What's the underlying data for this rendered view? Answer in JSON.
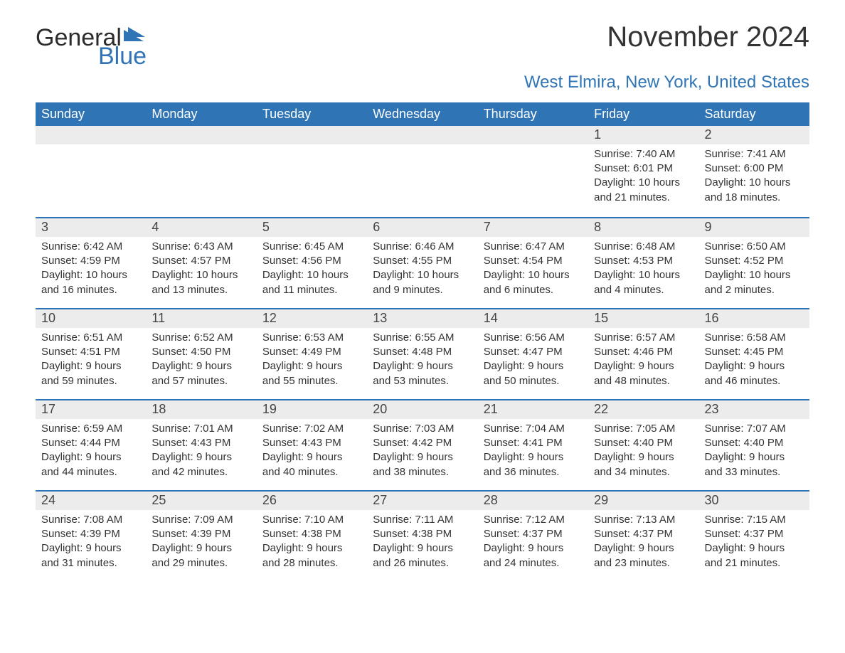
{
  "logo": {
    "word1": "General",
    "word2": "Blue",
    "flag_color": "#2f74b5"
  },
  "title": "November 2024",
  "subtitle": "West Elmira, New York, United States",
  "style": {
    "header_bg": "#2f74b5",
    "header_text": "#ffffff",
    "band_bg": "#ececec",
    "band_border": "#2f74b5",
    "body_bg": "#ffffff",
    "text_color": "#333333",
    "title_fontsize": 40,
    "subtitle_fontsize": 24,
    "dayname_fontsize": 18,
    "daynum_fontsize": 18,
    "body_fontsize": 15
  },
  "day_names": [
    "Sunday",
    "Monday",
    "Tuesday",
    "Wednesday",
    "Thursday",
    "Friday",
    "Saturday"
  ],
  "weeks": [
    [
      null,
      null,
      null,
      null,
      null,
      {
        "n": "1",
        "sunrise": "7:40 AM",
        "sunset": "6:01 PM",
        "daylight": "10 hours and 21 minutes."
      },
      {
        "n": "2",
        "sunrise": "7:41 AM",
        "sunset": "6:00 PM",
        "daylight": "10 hours and 18 minutes."
      }
    ],
    [
      {
        "n": "3",
        "sunrise": "6:42 AM",
        "sunset": "4:59 PM",
        "daylight": "10 hours and 16 minutes."
      },
      {
        "n": "4",
        "sunrise": "6:43 AM",
        "sunset": "4:57 PM",
        "daylight": "10 hours and 13 minutes."
      },
      {
        "n": "5",
        "sunrise": "6:45 AM",
        "sunset": "4:56 PM",
        "daylight": "10 hours and 11 minutes."
      },
      {
        "n": "6",
        "sunrise": "6:46 AM",
        "sunset": "4:55 PM",
        "daylight": "10 hours and 9 minutes."
      },
      {
        "n": "7",
        "sunrise": "6:47 AM",
        "sunset": "4:54 PM",
        "daylight": "10 hours and 6 minutes."
      },
      {
        "n": "8",
        "sunrise": "6:48 AM",
        "sunset": "4:53 PM",
        "daylight": "10 hours and 4 minutes."
      },
      {
        "n": "9",
        "sunrise": "6:50 AM",
        "sunset": "4:52 PM",
        "daylight": "10 hours and 2 minutes."
      }
    ],
    [
      {
        "n": "10",
        "sunrise": "6:51 AM",
        "sunset": "4:51 PM",
        "daylight": "9 hours and 59 minutes."
      },
      {
        "n": "11",
        "sunrise": "6:52 AM",
        "sunset": "4:50 PM",
        "daylight": "9 hours and 57 minutes."
      },
      {
        "n": "12",
        "sunrise": "6:53 AM",
        "sunset": "4:49 PM",
        "daylight": "9 hours and 55 minutes."
      },
      {
        "n": "13",
        "sunrise": "6:55 AM",
        "sunset": "4:48 PM",
        "daylight": "9 hours and 53 minutes."
      },
      {
        "n": "14",
        "sunrise": "6:56 AM",
        "sunset": "4:47 PM",
        "daylight": "9 hours and 50 minutes."
      },
      {
        "n": "15",
        "sunrise": "6:57 AM",
        "sunset": "4:46 PM",
        "daylight": "9 hours and 48 minutes."
      },
      {
        "n": "16",
        "sunrise": "6:58 AM",
        "sunset": "4:45 PM",
        "daylight": "9 hours and 46 minutes."
      }
    ],
    [
      {
        "n": "17",
        "sunrise": "6:59 AM",
        "sunset": "4:44 PM",
        "daylight": "9 hours and 44 minutes."
      },
      {
        "n": "18",
        "sunrise": "7:01 AM",
        "sunset": "4:43 PM",
        "daylight": "9 hours and 42 minutes."
      },
      {
        "n": "19",
        "sunrise": "7:02 AM",
        "sunset": "4:43 PM",
        "daylight": "9 hours and 40 minutes."
      },
      {
        "n": "20",
        "sunrise": "7:03 AM",
        "sunset": "4:42 PM",
        "daylight": "9 hours and 38 minutes."
      },
      {
        "n": "21",
        "sunrise": "7:04 AM",
        "sunset": "4:41 PM",
        "daylight": "9 hours and 36 minutes."
      },
      {
        "n": "22",
        "sunrise": "7:05 AM",
        "sunset": "4:40 PM",
        "daylight": "9 hours and 34 minutes."
      },
      {
        "n": "23",
        "sunrise": "7:07 AM",
        "sunset": "4:40 PM",
        "daylight": "9 hours and 33 minutes."
      }
    ],
    [
      {
        "n": "24",
        "sunrise": "7:08 AM",
        "sunset": "4:39 PM",
        "daylight": "9 hours and 31 minutes."
      },
      {
        "n": "25",
        "sunrise": "7:09 AM",
        "sunset": "4:39 PM",
        "daylight": "9 hours and 29 minutes."
      },
      {
        "n": "26",
        "sunrise": "7:10 AM",
        "sunset": "4:38 PM",
        "daylight": "9 hours and 28 minutes."
      },
      {
        "n": "27",
        "sunrise": "7:11 AM",
        "sunset": "4:38 PM",
        "daylight": "9 hours and 26 minutes."
      },
      {
        "n": "28",
        "sunrise": "7:12 AM",
        "sunset": "4:37 PM",
        "daylight": "9 hours and 24 minutes."
      },
      {
        "n": "29",
        "sunrise": "7:13 AM",
        "sunset": "4:37 PM",
        "daylight": "9 hours and 23 minutes."
      },
      {
        "n": "30",
        "sunrise": "7:15 AM",
        "sunset": "4:37 PM",
        "daylight": "9 hours and 21 minutes."
      }
    ]
  ],
  "labels": {
    "sunrise_prefix": "Sunrise: ",
    "sunset_prefix": "Sunset: ",
    "daylight_prefix": "Daylight: "
  }
}
